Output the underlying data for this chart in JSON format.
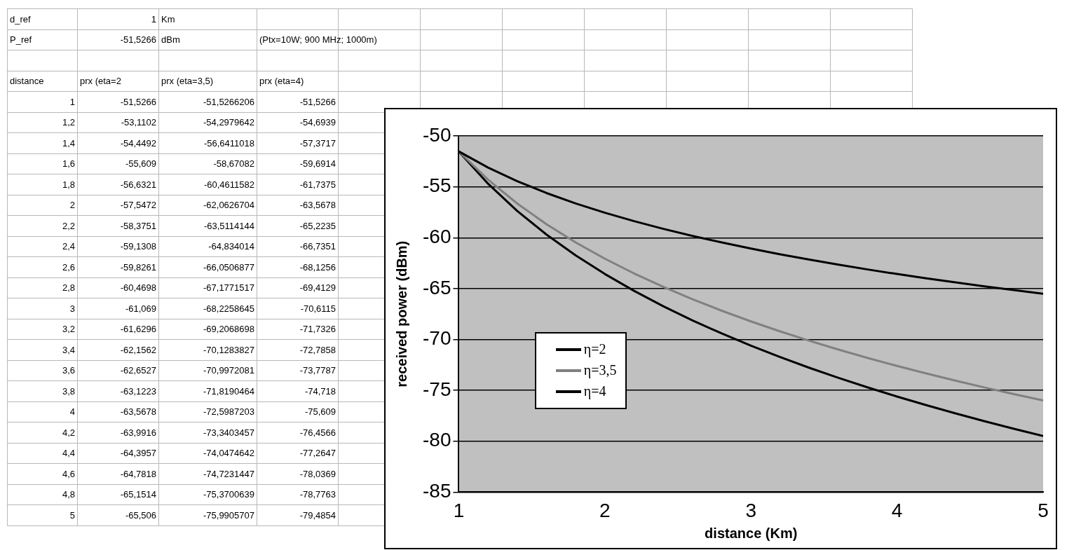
{
  "chart_data": {
    "type": "line",
    "xlabel": "distance (Km)",
    "ylabel": "received power (dBm)",
    "x": [
      1,
      1.2,
      1.4,
      1.6,
      1.8,
      2,
      2.2,
      2.4,
      2.6,
      2.8,
      3,
      3.2,
      3.4,
      3.6,
      3.8,
      4,
      4.2,
      4.4,
      4.6,
      4.8,
      5
    ],
    "series": [
      {
        "name": "η=2",
        "color": "#000000",
        "values": [
          -51.5266,
          -53.1102,
          -54.4492,
          -55.609,
          -56.6321,
          -57.5472,
          -58.3751,
          -59.1308,
          -59.8261,
          -60.4698,
          -61.069,
          -61.6296,
          -62.1562,
          -62.6527,
          -63.1223,
          -63.5678,
          -63.9916,
          -64.3957,
          -64.7818,
          -65.1514,
          -65.506
        ]
      },
      {
        "name": "η=3,5",
        "color": "#808080",
        "values": [
          -51.5266206,
          -54.2979642,
          -56.6411018,
          -58.67082,
          -60.4611582,
          -62.0626704,
          -63.5114144,
          -64.834014,
          -66.0506877,
          -67.1771517,
          -68.2258645,
          -69.2068698,
          -70.1283827,
          -70.9972081,
          -71.8190464,
          -72.5987203,
          -73.3403457,
          -74.0474642,
          -74.7231447,
          -75.3700639,
          -75.9905707
        ]
      },
      {
        "name": "η=4",
        "color": "#000000",
        "values": [
          -51.5266,
          -54.6939,
          -57.3717,
          -59.6914,
          -61.7375,
          -63.5678,
          -65.2235,
          -66.7351,
          -68.1256,
          -69.4129,
          -70.6115,
          -71.7326,
          -72.7858,
          -73.7787,
          -74.718,
          -75.609,
          -76.4566,
          -77.2647,
          -78.0369,
          -78.7763,
          -79.4854
        ]
      }
    ],
    "xlim": [
      1,
      5
    ],
    "xticks": [
      1,
      2,
      3,
      4,
      5
    ],
    "ylim": [
      -85,
      -50
    ],
    "yticks": [
      -85,
      -80,
      -75,
      -70,
      -65,
      -60,
      -55,
      -50
    ],
    "grid": "y",
    "legend": "bottom left",
    "marker": "none",
    "line_style": "solid",
    "annotations": [
      "d_ref",
      "1",
      "Km",
      "P_ref",
      "-51,5266",
      "dBm",
      "(Ptx=10W; 900 MHz; 1000m)",
      "distance",
      "prx (eta=2",
      "prx (eta=3,5)",
      "prx (eta=4)",
      "1",
      "1,2",
      "1,4",
      "1,6",
      "1,8",
      "2",
      "2,2",
      "2,4",
      "2,6",
      "2,8",
      "3",
      "3,2",
      "3,4",
      "3,6",
      "3,8",
      "4",
      "4,2",
      "4,4",
      "4,6",
      "4,8",
      "5",
      "-51,5266",
      "-53,1102",
      "-54,4492",
      "-55,609",
      "-56,6321",
      "-57,5472",
      "-58,3751",
      "-59,1308",
      "-59,8261",
      "-60,4698",
      "-61,069",
      "-61,6296",
      "-62,1562",
      "-62,6527",
      "-63,1223",
      "-63,5678",
      "-63,9916",
      "-64,3957",
      "-64,7818",
      "-65,1514",
      "-65,506",
      "-51,5266206",
      "-54,2979642",
      "-56,6411018",
      "-58,67082",
      "-60,4611582",
      "-62,0626704",
      "-63,5114144",
      "-64,834014",
      "-66,0506877",
      "-67,1771517",
      "-68,2258645",
      "-69,2068698",
      "-70,1283827",
      "-70,9972081",
      "-71,8190464",
      "-72,5987203",
      "-73,3403457",
      "-74,0474642",
      "-74,7231447",
      "-75,3700639",
      "-75,9905707",
      "-51,5266",
      "-54,6939",
      "-57,3717",
      "-59,6914",
      "-61,7375",
      "-63,5678",
      "-65,2235",
      "-66,7351",
      "-68,1256",
      "-69,4129",
      "-70,6115",
      "-71,7326",
      "-72,7858",
      "-73,7787",
      "-74,718",
      "-75,609",
      "-76,4566",
      "-77,2647",
      "-78,0369",
      "-78,7763",
      "-79,4854"
    ]
  }
}
